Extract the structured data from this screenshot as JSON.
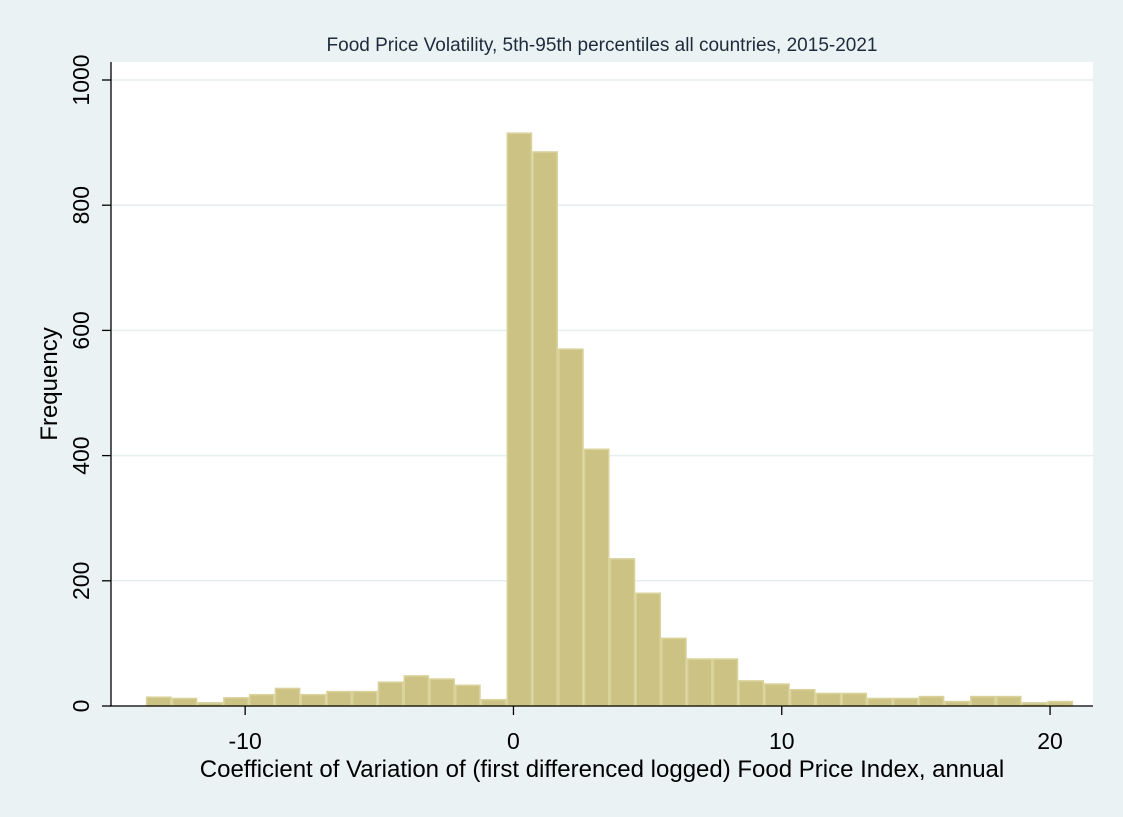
{
  "chart_data": {
    "type": "bar",
    "title": "Food Price Volatility, 5th-95th percentiles all countries, 2015-2021",
    "xlabel": "Coefficient of Variation of (first differenced logged) Food Price Index, annual",
    "ylabel": "Frequency",
    "xlim": [
      -15.0,
      21.6
    ],
    "ylim": [
      0,
      1000
    ],
    "xticks": [
      -10,
      0,
      10,
      20
    ],
    "xtick_labels": [
      "-10",
      "0",
      "10",
      "20"
    ],
    "yticks": [
      0,
      200,
      400,
      600,
      800,
      1000
    ],
    "ytick_labels": [
      "0",
      "200",
      "400",
      "600",
      "800",
      "1000"
    ],
    "bin_width": 0.96,
    "bin_start": -13.7,
    "values": [
      14,
      12,
      5,
      13,
      18,
      28,
      18,
      23,
      23,
      38,
      48,
      43,
      33,
      10,
      915,
      885,
      570,
      410,
      235,
      180,
      108,
      75,
      75,
      40,
      35,
      26,
      20,
      20,
      12,
      12,
      15,
      7,
      15,
      15,
      5,
      7
    ],
    "grid": "horizontal",
    "legend": "none",
    "colors": {
      "bar_fill": "#ccc283",
      "bar_edge": "#d9d29b",
      "plot_bg": "#ffffff",
      "page_bg": "#eaf2f3",
      "grid": "#e6eef0",
      "title": "#1e2b3c"
    }
  }
}
